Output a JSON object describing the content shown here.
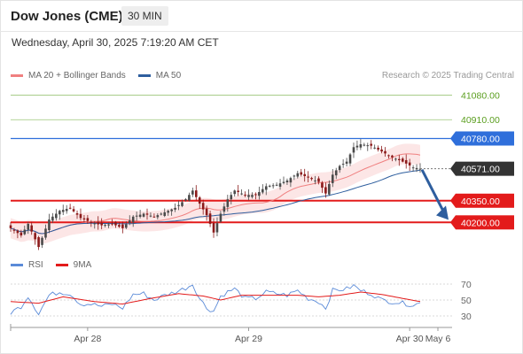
{
  "header": {
    "title": "Dow Jones (CME)",
    "timeframe": "30 MIN"
  },
  "timestamp": "Wednesday, April 30, 2025 7:19:20 AM CET",
  "credit": "Research © 2025 Trading Central",
  "legend_main": [
    {
      "label": "MA 20 + Bollinger Bands",
      "color": "#f08080"
    },
    {
      "label": "MA 50",
      "color": "#2e5e9e"
    }
  ],
  "legend_osc": [
    {
      "label": "RSI",
      "color": "#5b8bd8"
    },
    {
      "label": "9MA",
      "color": "#e31b1b"
    }
  ],
  "chart_data": {
    "type": "candlestick",
    "y_range": [
      40000,
      41150
    ],
    "x_ticks": [
      "Apr 28",
      "Apr 29",
      "Apr 30",
      "May 6"
    ],
    "current_price": {
      "label": "40571.00",
      "value": 40571,
      "color": "#333333"
    },
    "levels": [
      {
        "label": "41080.00",
        "value": 41080,
        "role": "resistance",
        "color": "#5a9e1e"
      },
      {
        "label": "40910.00",
        "value": 40910,
        "role": "resistance",
        "color": "#5a9e1e"
      },
      {
        "label": "40780.00",
        "value": 40780,
        "role": "pivot",
        "color": "#2f6fdb"
      },
      {
        "label": "40350.00",
        "value": 40350,
        "role": "support",
        "color": "#e31b1b"
      },
      {
        "label": "40200.00",
        "value": 40200,
        "role": "support",
        "color": "#e31b1b"
      }
    ],
    "forecast_arrow": {
      "from": 40565,
      "to": 40230,
      "direction": "down",
      "color": "#2e5e9e"
    },
    "anchors": [
      [
        0,
        40160
      ],
      [
        3,
        40110
      ],
      [
        5,
        40190
      ],
      [
        8,
        40030
      ],
      [
        11,
        40220
      ],
      [
        14,
        40280
      ],
      [
        17,
        40300
      ],
      [
        20,
        40230
      ],
      [
        23,
        40200
      ],
      [
        26,
        40180
      ],
      [
        29,
        40190
      ],
      [
        32,
        40160
      ],
      [
        35,
        40240
      ],
      [
        38,
        40260
      ],
      [
        41,
        40240
      ],
      [
        44,
        40270
      ],
      [
        47,
        40300
      ],
      [
        50,
        40360
      ],
      [
        52,
        40420
      ],
      [
        54,
        40330
      ],
      [
        56,
        40250
      ],
      [
        58,
        40130
      ],
      [
        60,
        40260
      ],
      [
        62,
        40360
      ],
      [
        64,
        40420
      ],
      [
        67,
        40390
      ],
      [
        70,
        40390
      ],
      [
        73,
        40450
      ],
      [
        76,
        40460
      ],
      [
        79,
        40490
      ],
      [
        82,
        40540
      ],
      [
        85,
        40510
      ],
      [
        88,
        40480
      ],
      [
        90,
        40400
      ],
      [
        92,
        40530
      ],
      [
        94,
        40590
      ],
      [
        96,
        40620
      ],
      [
        98,
        40720
      ],
      [
        100,
        40740
      ],
      [
        103,
        40730
      ],
      [
        106,
        40690
      ],
      [
        109,
        40650
      ],
      [
        112,
        40620
      ],
      [
        115,
        40580
      ],
      [
        117,
        40571
      ]
    ],
    "ma20_band_width": 70,
    "oscillator": {
      "y_range": [
        20,
        80
      ],
      "levels": [
        70,
        50,
        30
      ],
      "rsi_anchors": [
        [
          0,
          34
        ],
        [
          3,
          42
        ],
        [
          5,
          55
        ],
        [
          8,
          33
        ],
        [
          11,
          56
        ],
        [
          14,
          60
        ],
        [
          17,
          58
        ],
        [
          20,
          45
        ],
        [
          23,
          45
        ],
        [
          26,
          42
        ],
        [
          29,
          45
        ],
        [
          32,
          40
        ],
        [
          35,
          57
        ],
        [
          38,
          58
        ],
        [
          41,
          50
        ],
        [
          44,
          56
        ],
        [
          47,
          60
        ],
        [
          50,
          65
        ],
        [
          52,
          70
        ],
        [
          54,
          52
        ],
        [
          56,
          40
        ],
        [
          58,
          36
        ],
        [
          60,
          55
        ],
        [
          62,
          60
        ],
        [
          64,
          64
        ],
        [
          67,
          52
        ],
        [
          70,
          52
        ],
        [
          73,
          60
        ],
        [
          76,
          58
        ],
        [
          79,
          56
        ],
        [
          82,
          62
        ],
        [
          85,
          52
        ],
        [
          88,
          48
        ],
        [
          90,
          40
        ],
        [
          92,
          62
        ],
        [
          94,
          63
        ],
        [
          96,
          64
        ],
        [
          98,
          68
        ],
        [
          100,
          62
        ],
        [
          103,
          58
        ],
        [
          106,
          50
        ],
        [
          109,
          48
        ],
        [
          112,
          46
        ],
        [
          115,
          44
        ],
        [
          117,
          46
        ]
      ],
      "ma_anchors": [
        [
          0,
          48
        ],
        [
          8,
          46
        ],
        [
          15,
          54
        ],
        [
          24,
          48
        ],
        [
          32,
          45
        ],
        [
          40,
          52
        ],
        [
          48,
          58
        ],
        [
          55,
          55
        ],
        [
          60,
          50
        ],
        [
          66,
          56
        ],
        [
          74,
          56
        ],
        [
          82,
          56
        ],
        [
          88,
          54
        ],
        [
          94,
          56
        ],
        [
          100,
          60
        ],
        [
          106,
          57
        ],
        [
          112,
          52
        ],
        [
          117,
          48
        ]
      ]
    }
  }
}
